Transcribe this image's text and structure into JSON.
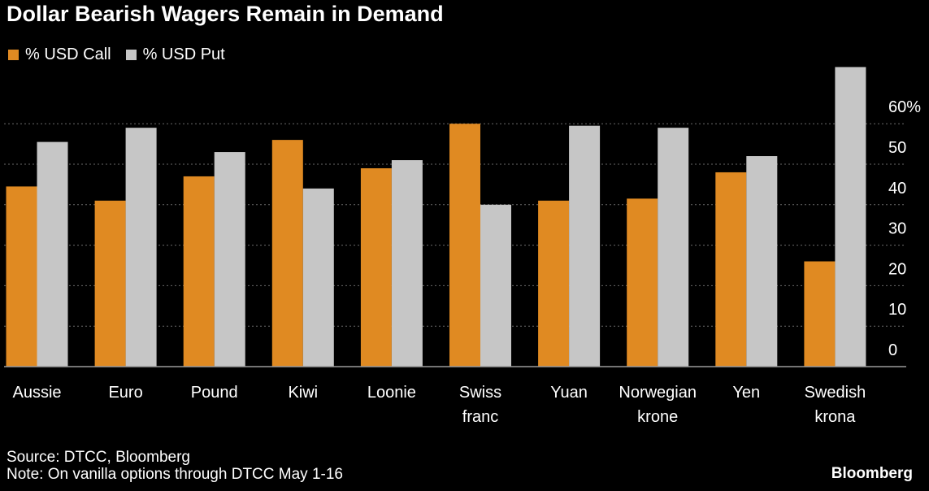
{
  "title": "Dollar Bearish Wagers Remain in Demand",
  "legend": [
    {
      "label": "% USD Call",
      "color": "#e08a22"
    },
    {
      "label": "% USD Put",
      "color": "#c6c6c6"
    }
  ],
  "footer": {
    "source": "Source: DTCC, Bloomberg",
    "note": "Note: On vanilla options through DTCC May 1-16",
    "brand": "Bloomberg"
  },
  "colors": {
    "background": "#000000",
    "grid": "#6a6a6a",
    "axis": "#9a9a9a",
    "text": "#ffffff"
  },
  "chart_data": {
    "type": "bar",
    "title": "Dollar Bearish Wagers Remain in Demand",
    "categories": [
      [
        "Aussie"
      ],
      [
        "Euro"
      ],
      [
        "Pound"
      ],
      [
        "Kiwi"
      ],
      [
        "Loonie"
      ],
      [
        "Swiss",
        "franc"
      ],
      [
        "Yuan"
      ],
      [
        "Norwegian",
        "krone"
      ],
      [
        "Yen"
      ],
      [
        "Swedish",
        "krona"
      ]
    ],
    "series": [
      {
        "name": "% USD Call",
        "color": "#e08a22",
        "values": [
          44.5,
          41,
          47,
          56,
          49,
          60,
          41,
          41.5,
          48,
          26
        ]
      },
      {
        "name": "% USD Put",
        "color": "#c6c6c6",
        "values": [
          55.5,
          59,
          53,
          44,
          51,
          40,
          59.5,
          59,
          52,
          74
        ]
      }
    ],
    "ylim": [
      0,
      74
    ],
    "yticks": [
      0,
      10,
      20,
      30,
      40,
      50,
      60
    ],
    "ytick_labels": [
      "0",
      "10",
      "20",
      "30",
      "40",
      "50",
      "60%"
    ],
    "y_axis_position": "right",
    "grid": true,
    "legend_position": "top-left"
  }
}
